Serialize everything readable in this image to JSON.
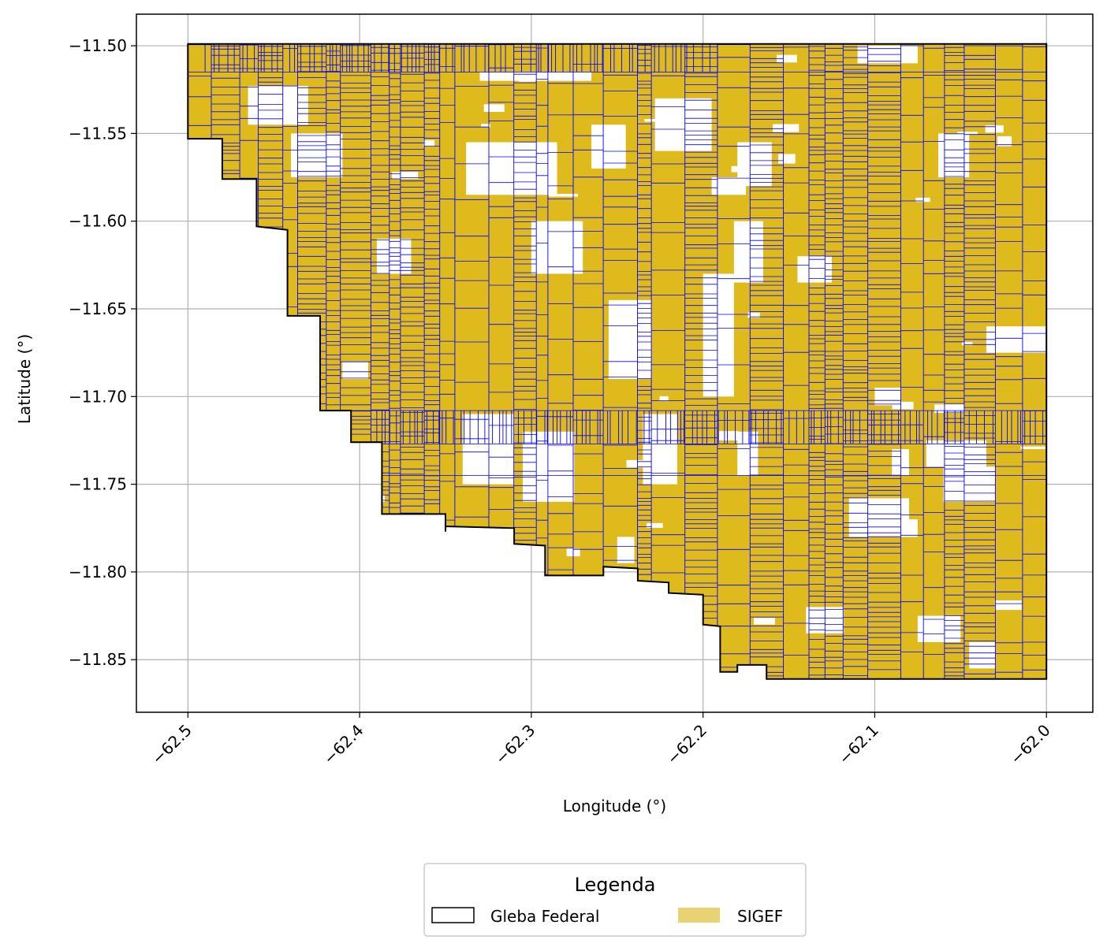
{
  "map": {
    "xlabel": "Longitude (°)",
    "ylabel": "Latitude (°)",
    "xlim": [
      -62.53,
      -61.973
    ],
    "ylim": [
      -11.88,
      -11.482
    ],
    "x_ticks": [
      {
        "value": -62.5,
        "label": "−62.5"
      },
      {
        "value": -62.4,
        "label": "−62.4"
      },
      {
        "value": -62.3,
        "label": "−62.3"
      },
      {
        "value": -62.2,
        "label": "−62.2"
      },
      {
        "value": -62.1,
        "label": "−62.1"
      },
      {
        "value": -62.0,
        "label": "−62.0"
      }
    ],
    "y_ticks": [
      {
        "value": -11.5,
        "label": "−11.50"
      },
      {
        "value": -11.55,
        "label": "−11.55"
      },
      {
        "value": -11.6,
        "label": "−11.60"
      },
      {
        "value": -11.65,
        "label": "−11.65"
      },
      {
        "value": -11.7,
        "label": "−11.70"
      },
      {
        "value": -11.75,
        "label": "−11.75"
      },
      {
        "value": -11.8,
        "label": "−11.80"
      },
      {
        "value": -11.85,
        "label": "−11.85"
      }
    ],
    "grid": true,
    "gleba_boundary": [
      [
        -62.5,
        -11.499
      ],
      [
        -62.0,
        -11.499
      ],
      [
        -62.0,
        -11.861
      ],
      [
        -62.163,
        -11.861
      ],
      [
        -62.163,
        -11.853
      ],
      [
        -62.18,
        -11.853
      ],
      [
        -62.18,
        -11.857
      ],
      [
        -62.19,
        -11.857
      ],
      [
        -62.19,
        -11.831
      ],
      [
        -62.2,
        -11.83
      ],
      [
        -62.2,
        -11.813
      ],
      [
        -62.22,
        -11.812
      ],
      [
        -62.22,
        -11.806
      ],
      [
        -62.238,
        -11.805
      ],
      [
        -62.238,
        -11.798
      ],
      [
        -62.258,
        -11.797
      ],
      [
        -62.258,
        -11.802
      ],
      [
        -62.292,
        -11.802
      ],
      [
        -62.292,
        -11.785
      ],
      [
        -62.31,
        -11.784
      ],
      [
        -62.31,
        -11.775
      ],
      [
        -62.35,
        -11.774
      ],
      [
        -62.35,
        -11.777
      ],
      [
        -62.35,
        -11.767
      ],
      [
        -62.368,
        -11.767
      ],
      [
        -62.387,
        -11.767
      ],
      [
        -62.387,
        -11.726
      ],
      [
        -62.405,
        -11.726
      ],
      [
        -62.405,
        -11.708
      ],
      [
        -62.423,
        -11.708
      ],
      [
        -62.423,
        -11.654
      ],
      [
        -62.442,
        -11.654
      ],
      [
        -62.442,
        -11.605
      ],
      [
        -62.46,
        -11.603
      ],
      [
        -62.46,
        -11.576
      ],
      [
        -62.48,
        -11.576
      ],
      [
        -62.48,
        -11.553
      ],
      [
        -62.5,
        -11.553
      ]
    ],
    "colors": {
      "gleba_edge": "#000000",
      "sigef_fill": "#dfba1d",
      "sigef_edge": "#0000ff",
      "sigef_legend": "#e8d274",
      "grid": "#b0b0b0"
    }
  },
  "legend": {
    "title": "Legenda",
    "items": [
      {
        "label": "Gleba Federal"
      },
      {
        "label": "SIGEF"
      }
    ]
  }
}
